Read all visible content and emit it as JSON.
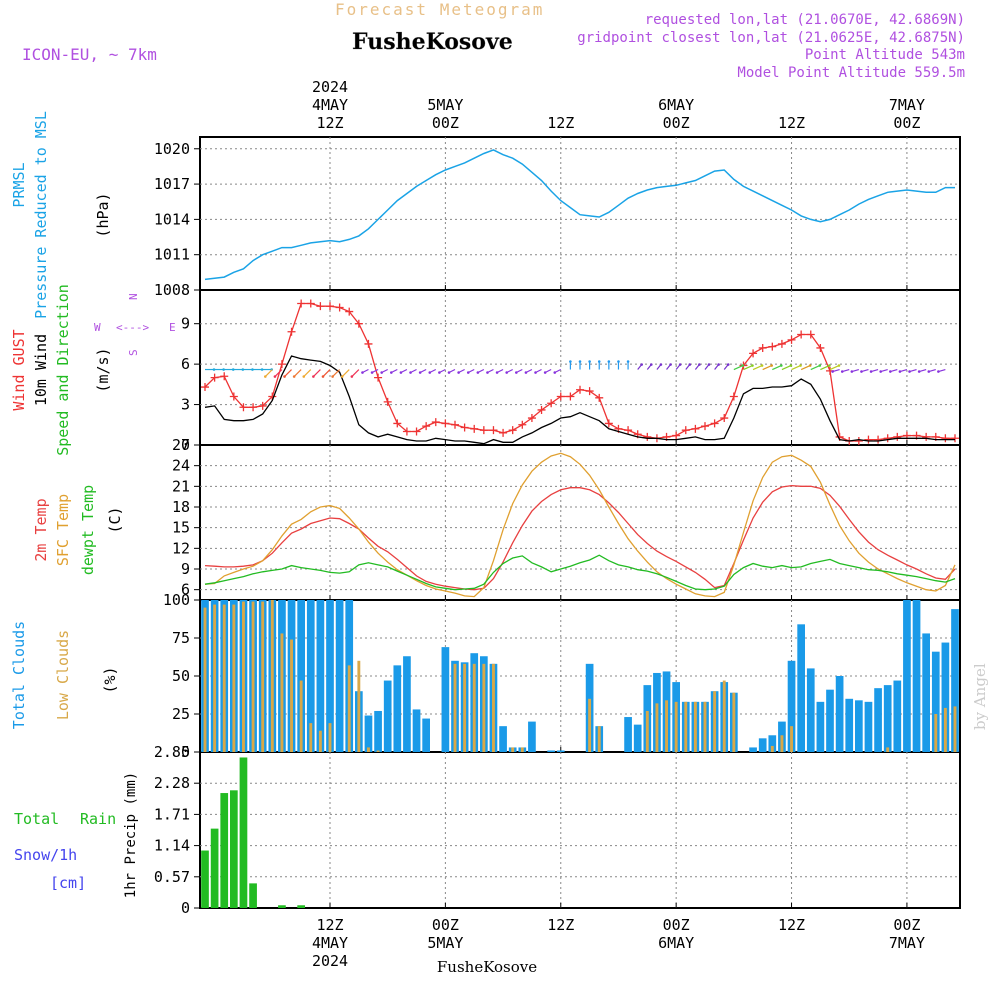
{
  "header": {
    "title": "Forecast Meteogram",
    "location": "FusheKosove",
    "model": "ICON-EU, ~ 7km",
    "requested": "requested lon,lat (21.0670E, 42.6869N)",
    "gridpoint": "gridpoint closest lon,lat (21.0625E, 42.6875N)",
    "point_altitude": "Point Altitude 543m",
    "model_altitude": "Model Point Altitude 559.5m",
    "watermark": "by Angel",
    "footer_location": "FusheKosove"
  },
  "colors": {
    "pressure": "#1aa3e6",
    "gust": "#ee3333",
    "wind": "#000000",
    "temp2m": "#e84040",
    "sfctemp": "#e0a030",
    "dewpt": "#22bb22",
    "total_clouds": "#1a9ae8",
    "low_clouds": "#d8a848",
    "rain": "#22bb22",
    "snow": "#4444ee",
    "purple_text": "#b050e0"
  },
  "time_axis_top": [
    {
      "label": "2024\n4MAY\n12Z"
    },
    {
      "label": "5MAY\n00Z"
    },
    {
      "label": "12Z"
    },
    {
      "label": "6MAY\n00Z"
    },
    {
      "label": "12Z"
    },
    {
      "label": "7MAY\n00Z"
    }
  ],
  "time_axis_bottom": [
    {
      "label": "12Z\n4MAY\n2024"
    },
    {
      "label": "00Z\n5MAY"
    },
    {
      "label": "12Z"
    },
    {
      "label": "00Z\n6MAY"
    },
    {
      "label": "12Z"
    },
    {
      "label": "00Z\n7MAY"
    }
  ],
  "panel_labels": {
    "pressure": [
      "PRMSL",
      "Pressure Reduced to MSL",
      "(hPa)"
    ],
    "wind": [
      "Wind GUST",
      "10m Wind",
      "Speed and Direction",
      "(m/s)"
    ],
    "wind_compass": {
      "w": "W",
      "e": "E",
      "n": "N",
      "s": "S"
    },
    "temp": [
      "2m Temp",
      "SFC Temp",
      "dewpt Temp",
      "(C)"
    ],
    "clouds": [
      "Total Clouds",
      "Low Clouds",
      "(%)"
    ],
    "precip": [
      "Total",
      "Rain",
      "Snow/1h",
      "[cm]",
      "1hr Precip (mm)"
    ]
  },
  "chart_data": [
    {
      "type": "line",
      "name": "pressure",
      "xlim": [
        0,
        78
      ],
      "ylim": [
        1008,
        1021
      ],
      "yticks": [
        "1020",
        "1017",
        "1014",
        "1011",
        "1008"
      ],
      "series": [
        {
          "name": "PRMSL",
          "values": [
            1008.9,
            1009,
            1009.1,
            1009.5,
            1009.8,
            1010.5,
            1011,
            1011.3,
            1011.6,
            1011.6,
            1011.8,
            1012,
            1012.1,
            1012.2,
            1012.1,
            1012.3,
            1012.6,
            1013.2,
            1014,
            1014.8,
            1015.6,
            1016.2,
            1016.8,
            1017.3,
            1017.8,
            1018.2,
            1018.5,
            1018.8,
            1019.2,
            1019.6,
            1019.9,
            1019.5,
            1019.2,
            1018.7,
            1018,
            1017.3,
            1016.4,
            1015.6,
            1015,
            1014.4,
            1014.3,
            1014.2,
            1014.6,
            1015.2,
            1015.8,
            1016.2,
            1016.5,
            1016.7,
            1016.8,
            1016.9,
            1017.1,
            1017.3,
            1017.7,
            1018.1,
            1018.2,
            1017.4,
            1016.8,
            1016.4,
            1016,
            1015.6,
            1015.2,
            1014.8,
            1014.3,
            1014,
            1013.8,
            1014,
            1014.4,
            1014.8,
            1015.3,
            1015.7,
            1016,
            1016.3,
            1016.4,
            1016.5,
            1016.4,
            1016.3,
            1016.3,
            1016.7,
            1016.7
          ]
        }
      ]
    },
    {
      "type": "line",
      "name": "wind",
      "xlim": [
        0,
        78
      ],
      "ylim": [
        0,
        11.5
      ],
      "yticks": [
        "9",
        "6",
        "3",
        "0"
      ],
      "series": [
        {
          "name": "Wind GUST",
          "values": [
            4.3,
            5,
            5.1,
            3.6,
            2.8,
            2.8,
            2.9,
            3.6,
            6,
            8.4,
            10.5,
            10.5,
            10.3,
            10.3,
            10.2,
            9.9,
            9,
            7.5,
            5,
            3.2,
            1.6,
            1,
            1,
            1.4,
            1.7,
            1.6,
            1.5,
            1.3,
            1.2,
            1.1,
            1.1,
            0.9,
            1.1,
            1.5,
            2,
            2.6,
            3.1,
            3.6,
            3.6,
            4.1,
            4,
            3.5,
            1.6,
            1.2,
            1.1,
            0.8,
            0.6,
            0.5,
            0.6,
            0.7,
            1.1,
            1.2,
            1.4,
            1.6,
            2,
            3.6,
            5.9,
            6.8,
            7.2,
            7.3,
            7.5,
            7.8,
            8.2,
            8.2,
            7.2,
            5.5,
            0.6,
            0.3,
            0.3,
            0.4,
            0.4,
            0.5,
            0.6,
            0.7,
            0.7,
            0.6,
            0.6,
            0.5,
            0.5
          ]
        },
        {
          "name": "10m Wind",
          "values": [
            2.8,
            2.9,
            1.9,
            1.8,
            1.8,
            1.9,
            2.3,
            3.3,
            5.2,
            6.6,
            6.4,
            6.3,
            6.2,
            5.9,
            5.4,
            3.6,
            1.5,
            0.9,
            0.6,
            0.8,
            0.6,
            0.4,
            0.3,
            0.3,
            0.5,
            0.4,
            0.3,
            0.3,
            0.2,
            0.1,
            0.4,
            0.2,
            0.2,
            0.6,
            0.9,
            1.3,
            1.6,
            2,
            2.1,
            2.4,
            2.1,
            1.8,
            1.2,
            1,
            0.8,
            0.6,
            0.5,
            0.5,
            0.4,
            0.4,
            0.5,
            0.6,
            0.4,
            0.4,
            0.5,
            2,
            3.8,
            4.2,
            4.2,
            4.3,
            4.3,
            4.4,
            4.9,
            4.5,
            3.4,
            1.8,
            0.4,
            0.3,
            0.4,
            0.3,
            0.3,
            0.4,
            0.5,
            0.5,
            0.5,
            0.5,
            0.4,
            0.4,
            0.4
          ]
        }
      ]
    },
    {
      "type": "line",
      "name": "temperature",
      "xlim": [
        0,
        78
      ],
      "ylim": [
        4.5,
        27
      ],
      "yticks": [
        "27",
        "24",
        "21",
        "18",
        "15",
        "12",
        "9",
        "6"
      ],
      "series": [
        {
          "name": "2m Temp",
          "values": [
            9.5,
            9.4,
            9.3,
            9.3,
            9.4,
            9.6,
            10.2,
            11.3,
            12.8,
            14.2,
            14.8,
            15.6,
            16,
            16.4,
            16.3,
            15.6,
            14.8,
            13.5,
            12.3,
            11.5,
            10.4,
            9.2,
            8,
            7.2,
            6.8,
            6.5,
            6.3,
            6.1,
            6,
            6.2,
            7.6,
            10,
            12.8,
            15.3,
            17.4,
            18.8,
            19.8,
            20.5,
            20.8,
            20.8,
            20.5,
            19.8,
            18.6,
            17.2,
            15.6,
            14,
            12.7,
            11.6,
            10.8,
            10.1,
            9.3,
            8.5,
            7.5,
            6.3,
            6.6,
            9.8,
            13.2,
            16.4,
            18.7,
            20.2,
            20.9,
            21.1,
            21,
            21,
            20.7,
            19.7,
            18.1,
            16.2,
            14.4,
            12.9,
            11.8,
            11,
            10.3,
            9.6,
            9,
            8.3,
            7.7,
            7.5,
            9
          ]
        },
        {
          "name": "SFC Temp",
          "values": [
            6.8,
            6.9,
            8,
            8.5,
            9,
            9.4,
            10.2,
            11.8,
            13.8,
            15.5,
            16.2,
            17.3,
            18,
            18.2,
            17.8,
            16.4,
            14.8,
            12.9,
            11.3,
            10,
            8.9,
            8.1,
            7.3,
            6.6,
            6.1,
            5.8,
            5.5,
            5.1,
            5,
            6.3,
            10.2,
            14.7,
            18.5,
            21.2,
            23.2,
            24.5,
            25.4,
            25.8,
            25.3,
            24.2,
            22.6,
            20.5,
            18,
            15.6,
            13.4,
            11.6,
            10,
            8.6,
            7.6,
            6.8,
            6.1,
            5.4,
            5.1,
            5,
            5.6,
            9.6,
            14.3,
            18.9,
            22.3,
            24.5,
            25.3,
            25.5,
            24.8,
            23.9,
            21.6,
            18.3,
            15.3,
            13.1,
            11.3,
            10,
            9,
            8.3,
            7.6,
            7,
            6.5,
            6,
            5.8,
            6.6,
            9.6
          ]
        },
        {
          "name": "dewpt Temp",
          "values": [
            6.8,
            7,
            7.3,
            7.6,
            7.9,
            8.3,
            8.6,
            8.8,
            9,
            9.5,
            9.2,
            9,
            8.8,
            8.5,
            8.4,
            8.6,
            9.6,
            9.9,
            9.6,
            9.3,
            8.7,
            8.1,
            7.5,
            6.9,
            6.4,
            6.2,
            6,
            6.1,
            6.2,
            6.8,
            8.5,
            9.8,
            10.6,
            10.9,
            9.9,
            9.3,
            8.6,
            9,
            9.4,
            9.9,
            10.3,
            11,
            10.2,
            9.6,
            9.3,
            8.9,
            8.7,
            8.3,
            7.8,
            7.2,
            6.6,
            6.1,
            6,
            6.1,
            6.5,
            8.2,
            9.2,
            9.8,
            9.4,
            9.2,
            9.5,
            9.2,
            9.3,
            9.8,
            10.1,
            10.4,
            9.8,
            9.5,
            9.2,
            8.9,
            8.8,
            8.6,
            8.3,
            8.1,
            7.9,
            7.6,
            7.3,
            7.1,
            7.6
          ]
        }
      ]
    },
    {
      "type": "bar",
      "name": "clouds",
      "xlim": [
        0,
        78
      ],
      "ylim": [
        0,
        100
      ],
      "yticks": [
        "100",
        "75",
        "50",
        "25",
        "0"
      ],
      "series": [
        {
          "name": "Total Clouds",
          "values": [
            100,
            100,
            100,
            100,
            100,
            100,
            100,
            100,
            100,
            100,
            100,
            100,
            100,
            100,
            100,
            100,
            40,
            24,
            27,
            47,
            57,
            63,
            28,
            22,
            0,
            69,
            60,
            59,
            65,
            63,
            58,
            17,
            3,
            3,
            20,
            0,
            1,
            1,
            0,
            0,
            58,
            17,
            0,
            0,
            23,
            18,
            44,
            52,
            53,
            46,
            33,
            33,
            33,
            40,
            46,
            39,
            0,
            3,
            9,
            11,
            20,
            60,
            84,
            55,
            33,
            41,
            50,
            35,
            34,
            33,
            42,
            44,
            47,
            100,
            100,
            78,
            66,
            72,
            94
          ]
        },
        {
          "name": "Low Clouds",
          "values": [
            95,
            97,
            97,
            97,
            99,
            99,
            99,
            100,
            78,
            74,
            47,
            19,
            14,
            19,
            0,
            57,
            60,
            3,
            1,
            0,
            0,
            0,
            0,
            0,
            0,
            0,
            58,
            58,
            58,
            58,
            58,
            0,
            3,
            3,
            0,
            0,
            0,
            0,
            0,
            0,
            35,
            17,
            0,
            0,
            0,
            0,
            27,
            32,
            34,
            33,
            33,
            33,
            33,
            40,
            47,
            39,
            0,
            0,
            0,
            4,
            11,
            17,
            0,
            0,
            0,
            0,
            0,
            0,
            0,
            0,
            0,
            3,
            0,
            0,
            0,
            0,
            25,
            29,
            30
          ]
        }
      ]
    },
    {
      "type": "bar",
      "name": "precipitation",
      "xlim": [
        0,
        78
      ],
      "ylim": [
        0,
        2.85
      ],
      "yticks": [
        "2.85",
        "2.28",
        "1.71",
        "1.14",
        "0.57",
        "0"
      ],
      "series": [
        {
          "name": "Total Rain",
          "values": [
            1.05,
            1.45,
            2.1,
            2.15,
            2.75,
            0.45,
            0,
            0,
            0.05,
            0,
            0.05,
            0,
            0,
            0,
            0,
            0,
            0,
            0,
            0,
            0,
            0,
            0,
            0,
            0,
            0,
            0,
            0,
            0,
            0,
            0,
            0,
            0,
            0,
            0,
            0,
            0,
            0,
            0,
            0,
            0,
            0,
            0,
            0,
            0,
            0,
            0,
            0,
            0,
            0,
            0,
            0,
            0,
            0,
            0,
            0,
            0,
            0,
            0,
            0,
            0,
            0,
            0,
            0,
            0,
            0,
            0,
            0,
            0,
            0,
            0,
            0,
            0,
            0,
            0,
            0,
            0,
            0,
            0,
            0
          ]
        }
      ]
    }
  ]
}
